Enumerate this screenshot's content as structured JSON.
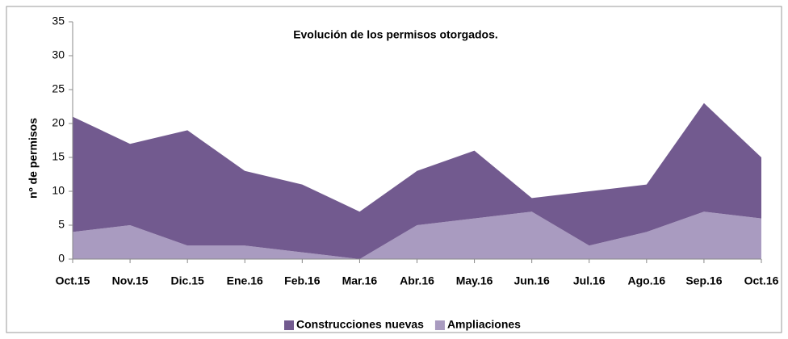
{
  "chart_data": {
    "type": "area",
    "stacked": true,
    "title": "Evolución de los permisos otorgados.",
    "y_label": "nº de permisos",
    "categories": [
      "Oct.15",
      "Nov.15",
      "Dic.15",
      "Ene.16",
      "Feb.16",
      "Mar.16",
      "Abr.16",
      "May.16",
      "Jun.16",
      "Jul.16",
      "Ago.16",
      "Sep.16",
      "Oct.16"
    ],
    "series": [
      {
        "name": "Construcciones nuevas",
        "color": "#725a8f",
        "values": [
          17,
          12,
          17,
          11,
          10,
          7,
          8,
          10,
          2,
          8,
          7,
          16,
          9
        ]
      },
      {
        "name": "Ampliaciones",
        "color": "#a99bc0",
        "values": [
          4,
          5,
          2,
          2,
          1,
          0,
          5,
          6,
          7,
          2,
          4,
          7,
          6
        ]
      }
    ],
    "ylim": [
      0,
      35
    ],
    "yticks": [
      0,
      5,
      10,
      15,
      20,
      25,
      30,
      35
    ],
    "grid": false,
    "legend": "bottom"
  }
}
